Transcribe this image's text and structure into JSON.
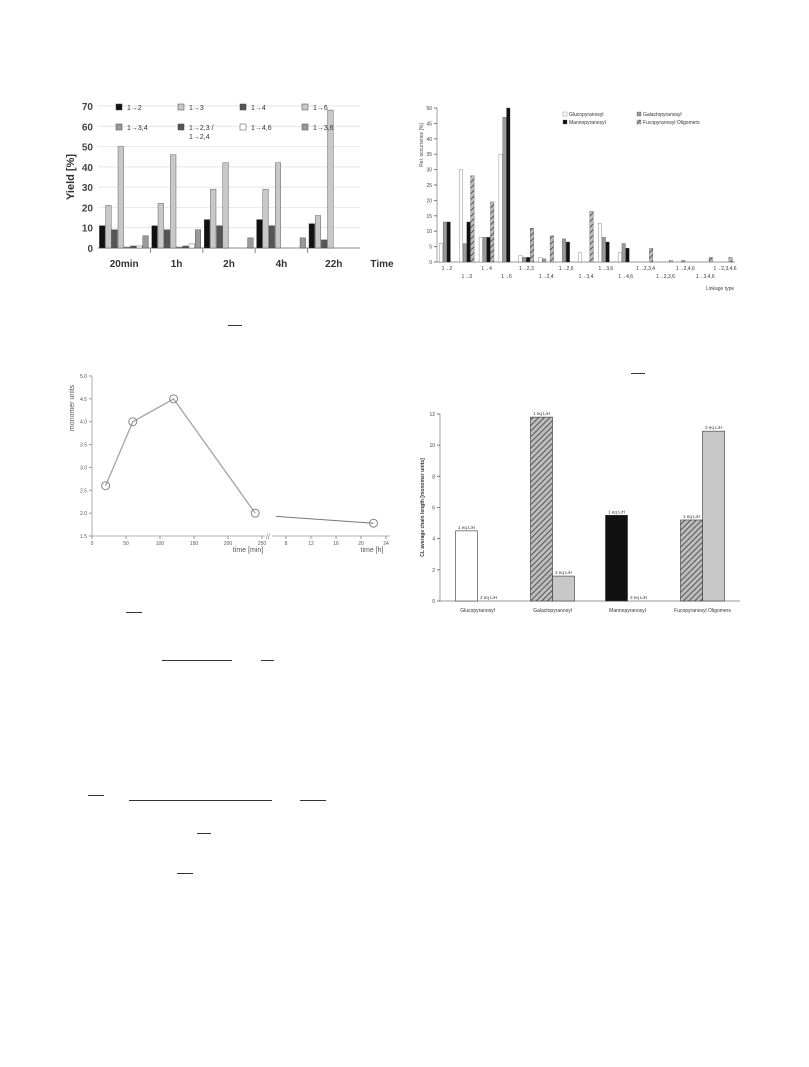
{
  "colors": {
    "black": "#111111",
    "dark_gray": "#555555",
    "mid_gray": "#9a9a9a",
    "light_gray": "#c8c8c8",
    "white": "#ffffff",
    "line_gray": "#a8a8a8",
    "hatch_gray": "#777777"
  },
  "chart_data": [
    {
      "id": "yield_by_time",
      "type": "bar",
      "ylabel": "Yield [%]",
      "xlabel": "Time",
      "ylim": [
        0,
        70
      ],
      "yticks": [
        0,
        10,
        20,
        30,
        40,
        50,
        60,
        70
      ],
      "grid": true,
      "categories": [
        "20min",
        "1h",
        "2h",
        "4h",
        "22h"
      ],
      "legend_placement": "top",
      "series": [
        {
          "name": "1→2",
          "fill": "black",
          "values": [
            11,
            11,
            14,
            14,
            12
          ]
        },
        {
          "name": "1→3",
          "fill": "light_gray",
          "values": [
            21,
            22,
            29,
            29,
            16
          ]
        },
        {
          "name": "1→4",
          "fill": "dark_gray",
          "values": [
            9,
            9,
            11,
            11,
            4
          ]
        },
        {
          "name": "1→6",
          "fill": "light_gray",
          "values": [
            50,
            46,
            42,
            42,
            68
          ]
        },
        {
          "name": "1→3,4",
          "fill": "mid_gray",
          "values": [
            0.5,
            0.5,
            0,
            0,
            0
          ]
        },
        {
          "name": "1→2,3 / 1→2,4",
          "fill": "dark_gray",
          "values": [
            1,
            1,
            0,
            0,
            0
          ]
        },
        {
          "name": "1→4,6",
          "fill": "white",
          "values": [
            1,
            2,
            0,
            0,
            0
          ]
        },
        {
          "name": "1→3,6",
          "fill": "mid_gray",
          "values": [
            6,
            9,
            5,
            5,
            0
          ]
        }
      ]
    },
    {
      "id": "linkage_occurrence",
      "type": "bar",
      "ylabel": "Rel. occurrence [%]",
      "xlabel": "Linkage type",
      "ylim": [
        0,
        50
      ],
      "yticks": [
        0,
        5,
        10,
        15,
        20,
        25,
        30,
        35,
        40,
        45,
        50
      ],
      "legend_placement": "top-right",
      "categories": [
        "1→2",
        "1→3",
        "1→4",
        "1→6",
        "1→2,3",
        "1→2,4",
        "1→2,6",
        "1→3,4",
        "1→3,6",
        "1→4,6",
        "1→2,3,4",
        "1→2,3,6",
        "1→2,4,6",
        "1→3,4,6",
        "1→2,3,4,6"
      ],
      "series": [
        {
          "name": "Glucopyranosyl",
          "fill": "white",
          "values": [
            6,
            30,
            8,
            35,
            2,
            1.5,
            0,
            3,
            12.5,
            3,
            0,
            0,
            0,
            0,
            0
          ]
        },
        {
          "name": "Galactopyranosyl",
          "fill": "mid_gray",
          "values": [
            13,
            6,
            8,
            47,
            1.5,
            1,
            7.5,
            0,
            8,
            6,
            0,
            0,
            0.5,
            0,
            0
          ]
        },
        {
          "name": "Mannopyranosyl",
          "fill": "black",
          "values": [
            13,
            13,
            8,
            50,
            1.5,
            0,
            6.5,
            0,
            6.5,
            4.5,
            0,
            0,
            0,
            0,
            0
          ]
        },
        {
          "name": "Fucopyranosyl Oligomers",
          "fill": "hatch",
          "values": [
            0,
            28,
            19.5,
            0,
            11,
            8.5,
            0,
            16.5,
            0,
            0,
            4.5,
            0.5,
            0,
            1.5,
            1.5
          ]
        }
      ]
    },
    {
      "id": "monomer_units_time",
      "type": "line",
      "ylabel": "monomer units",
      "xlabel_left": "time [min]",
      "xlabel_right": "time [h]",
      "ylim": [
        1.5,
        5.0
      ],
      "yticks": [
        "1.5",
        "2.0",
        "2.5",
        "3.0",
        "3.5",
        "4.0",
        "4.5",
        "5.0"
      ],
      "xticks_min": [
        "0",
        "50",
        "100",
        "150",
        "200",
        "250"
      ],
      "xticks_h": [
        "8",
        "12",
        "16",
        "20",
        "24"
      ],
      "segment_min": {
        "x": [
          20,
          60,
          120,
          240
        ],
        "y": [
          2.6,
          4.0,
          4.5,
          2.0
        ]
      },
      "segment_h": {
        "x": [
          22
        ],
        "y": [
          1.78
        ]
      },
      "grid": false
    },
    {
      "id": "avg_chain_length",
      "type": "bar",
      "ylabel": "CL average chain length [monomer units]",
      "ylim": [
        0,
        12
      ],
      "yticks": [
        0,
        2,
        4,
        6,
        8,
        10,
        12
      ],
      "categories": [
        "Glucopyranosyl",
        "Galactopyranosyl",
        "Mannopyranosyl",
        "Fucopyranosyl Oligomers"
      ],
      "bars": [
        {
          "category": 0,
          "slot": 0,
          "value": 4.5,
          "fill": "white",
          "label": "1 eq LiH"
        },
        {
          "category": 0,
          "slot": 1,
          "value": 0,
          "fill": "white",
          "label": "2 eq LiH"
        },
        {
          "category": 1,
          "slot": 0,
          "value": 11.8,
          "fill": "hatch",
          "label": "1 eq LiH"
        },
        {
          "category": 1,
          "slot": 1,
          "value": 1.6,
          "fill": "light_gray",
          "label": "2 eq LiH"
        },
        {
          "category": 2,
          "slot": 0,
          "value": 5.5,
          "fill": "black",
          "label": "1 eq LiH"
        },
        {
          "category": 2,
          "slot": 1,
          "value": 0,
          "fill": "white",
          "label": "2 eq LiH"
        },
        {
          "category": 3,
          "slot": 0,
          "value": 5.2,
          "fill": "hatch",
          "label": "1 eq LiH"
        },
        {
          "category": 3,
          "slot": 1,
          "value": 10.9,
          "fill": "light_gray",
          "label": "2 eq LiH"
        }
      ]
    }
  ]
}
